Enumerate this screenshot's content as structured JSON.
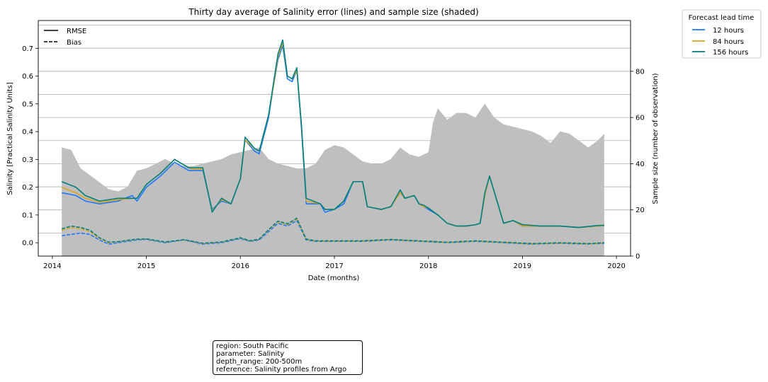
{
  "chart_data": {
    "type": "line",
    "title": "Thirty day average of Salinity error (lines) and sample size (shaded)",
    "xlabel": "Date (months)",
    "ylabel": "Salinity [Practical Salinity Units]",
    "y2label": "Sample size (number of observation)",
    "xlim": [
      2013.85,
      2020.15
    ],
    "ylim": [
      -0.048,
      0.8
    ],
    "y2lim": [
      0,
      102
    ],
    "x_ticks": [
      "2014",
      "2015",
      "2016",
      "2017",
      "2018",
      "2019",
      "2020"
    ],
    "y_ticks": [
      "0.0",
      "0.1",
      "0.2",
      "0.3",
      "0.4",
      "0.5",
      "0.6",
      "0.7"
    ],
    "y2_ticks": [
      "0",
      "20",
      "40",
      "60",
      "80"
    ],
    "grid": "horizontal",
    "line_style_legend": {
      "placement": "upper-left",
      "entries": [
        {
          "label": "RMSE",
          "style": "solid"
        },
        {
          "label": "Bias",
          "style": "dashed"
        }
      ]
    },
    "series_legend": {
      "title": "Forecast lead time",
      "placement": "outside-upper-right",
      "entries": [
        {
          "label": "12 hours",
          "color": "#1f78ff"
        },
        {
          "label": "84 hours",
          "color": "#daa520"
        },
        {
          "label": "156 hours",
          "color": "#008080"
        }
      ]
    },
    "sample_size": {
      "color": "#bfbfbf",
      "x": [
        2014.1,
        2014.2,
        2014.3,
        2014.4,
        2014.5,
        2014.6,
        2014.7,
        2014.8,
        2014.9,
        2015.0,
        2015.1,
        2015.2,
        2015.3,
        2015.4,
        2015.5,
        2015.6,
        2015.7,
        2015.8,
        2015.9,
        2016.0,
        2016.1,
        2016.2,
        2016.3,
        2016.4,
        2016.5,
        2016.6,
        2016.7,
        2016.8,
        2016.9,
        2017.0,
        2017.1,
        2017.2,
        2017.3,
        2017.4,
        2017.5,
        2017.6,
        2017.7,
        2017.8,
        2017.9,
        2018.0,
        2018.05,
        2018.1,
        2018.2,
        2018.3,
        2018.4,
        2018.5,
        2018.6,
        2018.7,
        2018.8,
        2018.9,
        2019.0,
        2019.1,
        2019.2,
        2019.3,
        2019.4,
        2019.5,
        2019.6,
        2019.7,
        2019.8,
        2019.87
      ],
      "values": [
        47,
        46,
        38,
        35,
        32,
        29,
        28,
        30,
        37,
        38,
        40,
        42,
        40,
        39,
        39,
        40,
        41,
        42,
        44,
        45,
        46,
        47,
        42,
        40,
        39,
        38,
        38,
        40,
        46,
        48,
        47,
        44,
        41,
        40,
        40,
        42,
        47,
        44,
        43,
        45,
        58,
        64,
        59,
        62,
        62,
        60,
        66,
        60,
        57,
        56,
        55,
        54,
        52,
        49,
        54,
        53,
        50,
        47,
        50,
        53
      ]
    },
    "series": [
      {
        "name": "12 hours",
        "metric": "RMSE",
        "color": "#1f78ff",
        "x": [
          2014.1,
          2014.25,
          2014.35,
          2014.5,
          2014.7,
          2014.85,
          2014.9,
          2015.0,
          2015.15,
          2015.3,
          2015.45,
          2015.5,
          2015.6,
          2015.7,
          2015.8,
          2015.9,
          2016.0,
          2016.05,
          2016.15,
          2016.2,
          2016.3,
          2016.35,
          2016.4,
          2016.45,
          2016.5,
          2016.55,
          2016.6,
          2016.65,
          2016.7,
          2016.85,
          2016.9,
          2017.0,
          2017.1,
          2017.2,
          2017.3,
          2017.35,
          2017.5,
          2017.6,
          2017.7,
          2017.75,
          2017.85,
          2017.9,
          2017.95,
          2018.0,
          2018.1,
          2018.2,
          2018.3,
          2018.4,
          2018.5,
          2018.55,
          2018.6,
          2018.65,
          2018.8,
          2018.9,
          2019.0,
          2019.2,
          2019.4,
          2019.6,
          2019.8,
          2019.87
        ],
        "values": [
          0.18,
          0.17,
          0.15,
          0.14,
          0.15,
          0.17,
          0.15,
          0.2,
          0.24,
          0.29,
          0.26,
          0.26,
          0.26,
          0.12,
          0.15,
          0.14,
          0.23,
          0.37,
          0.33,
          0.32,
          0.45,
          0.56,
          0.66,
          0.71,
          0.59,
          0.58,
          0.62,
          0.41,
          0.14,
          0.14,
          0.11,
          0.12,
          0.14,
          0.22,
          0.22,
          0.13,
          0.12,
          0.13,
          0.18,
          0.16,
          0.17,
          0.14,
          0.13,
          0.12,
          0.1,
          0.07,
          0.06,
          0.06,
          0.065,
          0.07,
          0.17,
          0.24,
          0.07,
          0.08,
          0.06,
          0.06,
          0.06,
          0.055,
          0.06,
          0.062
        ]
      },
      {
        "name": "84 hours",
        "metric": "RMSE",
        "color": "#daa520",
        "x": [
          2014.1,
          2014.25,
          2014.35,
          2014.5,
          2014.7,
          2014.85,
          2014.9,
          2015.0,
          2015.15,
          2015.3,
          2015.45,
          2015.5,
          2015.6,
          2015.7,
          2015.8,
          2015.9,
          2016.0,
          2016.05,
          2016.15,
          2016.2,
          2016.3,
          2016.35,
          2016.4,
          2016.45,
          2016.5,
          2016.55,
          2016.6,
          2016.65,
          2016.7,
          2016.85,
          2016.9,
          2017.0,
          2017.1,
          2017.2,
          2017.3,
          2017.35,
          2017.5,
          2017.6,
          2017.7,
          2017.75,
          2017.85,
          2017.9,
          2017.95,
          2018.0,
          2018.1,
          2018.2,
          2018.3,
          2018.4,
          2018.5,
          2018.55,
          2018.6,
          2018.65,
          2018.8,
          2018.9,
          2019.0,
          2019.2,
          2019.4,
          2019.6,
          2019.8,
          2019.87
        ],
        "values": [
          0.2,
          0.18,
          0.16,
          0.145,
          0.155,
          0.16,
          0.16,
          0.21,
          0.25,
          0.3,
          0.27,
          0.265,
          0.265,
          0.115,
          0.155,
          0.14,
          0.23,
          0.37,
          0.34,
          0.33,
          0.46,
          0.56,
          0.67,
          0.72,
          0.6,
          0.59,
          0.62,
          0.42,
          0.15,
          0.14,
          0.12,
          0.12,
          0.15,
          0.22,
          0.22,
          0.13,
          0.12,
          0.13,
          0.18,
          0.16,
          0.17,
          0.14,
          0.13,
          0.125,
          0.1,
          0.07,
          0.06,
          0.06,
          0.065,
          0.07,
          0.17,
          0.24,
          0.07,
          0.08,
          0.06,
          0.06,
          0.06,
          0.055,
          0.06,
          0.062
        ]
      },
      {
        "name": "156 hours",
        "metric": "RMSE",
        "color": "#008080",
        "x": [
          2014.1,
          2014.25,
          2014.35,
          2014.5,
          2014.7,
          2014.85,
          2014.9,
          2015.0,
          2015.15,
          2015.3,
          2015.45,
          2015.5,
          2015.6,
          2015.7,
          2015.8,
          2015.9,
          2016.0,
          2016.05,
          2016.15,
          2016.2,
          2016.3,
          2016.35,
          2016.4,
          2016.45,
          2016.5,
          2016.55,
          2016.6,
          2016.65,
          2016.7,
          2016.85,
          2016.9,
          2017.0,
          2017.1,
          2017.2,
          2017.3,
          2017.35,
          2017.5,
          2017.6,
          2017.7,
          2017.75,
          2017.85,
          2017.9,
          2017.95,
          2018.0,
          2018.1,
          2018.2,
          2018.3,
          2018.4,
          2018.5,
          2018.55,
          2018.6,
          2018.65,
          2018.8,
          2018.9,
          2019.0,
          2019.2,
          2019.4,
          2019.6,
          2019.8,
          2019.87
        ],
        "values": [
          0.22,
          0.2,
          0.17,
          0.15,
          0.16,
          0.16,
          0.16,
          0.21,
          0.25,
          0.3,
          0.27,
          0.27,
          0.27,
          0.11,
          0.16,
          0.14,
          0.23,
          0.38,
          0.34,
          0.33,
          0.46,
          0.57,
          0.68,
          0.73,
          0.6,
          0.59,
          0.63,
          0.42,
          0.16,
          0.14,
          0.12,
          0.12,
          0.15,
          0.22,
          0.22,
          0.13,
          0.12,
          0.13,
          0.19,
          0.16,
          0.17,
          0.14,
          0.135,
          0.125,
          0.1,
          0.07,
          0.06,
          0.06,
          0.065,
          0.07,
          0.18,
          0.24,
          0.07,
          0.08,
          0.065,
          0.06,
          0.06,
          0.055,
          0.062,
          0.063
        ]
      },
      {
        "name": "12 hours",
        "metric": "Bias",
        "color": "#1f78ff",
        "x": [
          2014.1,
          2014.2,
          2014.3,
          2014.4,
          2014.5,
          2014.6,
          2014.7,
          2014.8,
          2014.9,
          2015.0,
          2015.2,
          2015.4,
          2015.6,
          2015.8,
          2016.0,
          2016.1,
          2016.2,
          2016.3,
          2016.4,
          2016.5,
          2016.6,
          2016.7,
          2016.8,
          2017.0,
          2017.3,
          2017.6,
          2017.9,
          2018.2,
          2018.5,
          2018.8,
          2019.1,
          2019.4,
          2019.7,
          2019.87
        ],
        "values": [
          0.025,
          0.03,
          0.035,
          0.03,
          0.01,
          -0.005,
          0.0,
          0.005,
          0.01,
          0.012,
          0.0,
          0.01,
          -0.005,
          0.0,
          0.015,
          0.005,
          0.01,
          0.04,
          0.07,
          0.06,
          0.08,
          0.01,
          0.005,
          0.005,
          0.005,
          0.01,
          0.005,
          0.0,
          0.005,
          0.0,
          -0.005,
          -0.002,
          -0.005,
          -0.002
        ]
      },
      {
        "name": "84 hours",
        "metric": "Bias",
        "color": "#daa520",
        "x": [
          2014.1,
          2014.2,
          2014.3,
          2014.4,
          2014.5,
          2014.6,
          2014.7,
          2014.8,
          2014.9,
          2015.0,
          2015.2,
          2015.4,
          2015.6,
          2015.8,
          2016.0,
          2016.1,
          2016.2,
          2016.3,
          2016.4,
          2016.5,
          2016.6,
          2016.7,
          2016.8,
          2017.0,
          2017.3,
          2017.6,
          2017.9,
          2018.2,
          2018.5,
          2018.8,
          2019.1,
          2019.4,
          2019.7,
          2019.87
        ],
        "values": [
          0.045,
          0.055,
          0.05,
          0.04,
          0.015,
          0.0,
          0.003,
          0.008,
          0.012,
          0.013,
          0.002,
          0.01,
          -0.003,
          0.002,
          0.017,
          0.006,
          0.012,
          0.045,
          0.075,
          0.065,
          0.085,
          0.012,
          0.006,
          0.006,
          0.006,
          0.011,
          0.006,
          0.001,
          0.006,
          0.001,
          -0.004,
          -0.001,
          -0.004,
          -0.001
        ]
      },
      {
        "name": "156 hours",
        "metric": "Bias",
        "color": "#008080",
        "x": [
          2014.1,
          2014.2,
          2014.3,
          2014.4,
          2014.5,
          2014.6,
          2014.7,
          2014.8,
          2014.9,
          2015.0,
          2015.2,
          2015.4,
          2015.6,
          2015.8,
          2016.0,
          2016.1,
          2016.2,
          2016.3,
          2016.4,
          2016.5,
          2016.6,
          2016.7,
          2016.8,
          2017.0,
          2017.3,
          2017.6,
          2017.9,
          2018.2,
          2018.5,
          2018.8,
          2019.1,
          2019.4,
          2019.7,
          2019.87
        ],
        "values": [
          0.05,
          0.06,
          0.055,
          0.045,
          0.018,
          0.002,
          0.004,
          0.009,
          0.013,
          0.014,
          0.003,
          0.011,
          -0.002,
          0.003,
          0.018,
          0.007,
          0.013,
          0.047,
          0.078,
          0.068,
          0.088,
          0.013,
          0.007,
          0.007,
          0.007,
          0.012,
          0.007,
          0.002,
          0.007,
          0.002,
          -0.003,
          0.0,
          -0.003,
          0.0
        ]
      }
    ]
  },
  "info_box": {
    "lines": [
      "region: South Pacific",
      "parameter: Salinity",
      "depth_range: 200-500m",
      "reference: Salinity profiles from Argo"
    ]
  }
}
